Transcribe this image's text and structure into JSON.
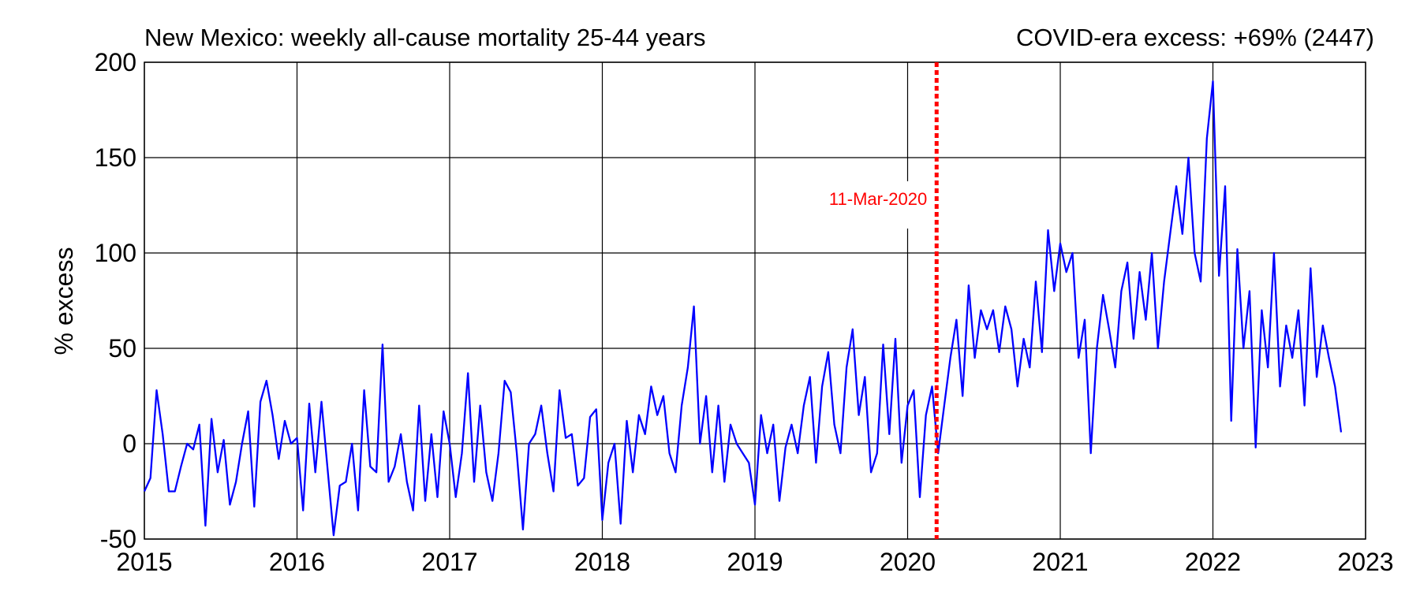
{
  "chart_data": {
    "type": "line",
    "title": "New Mexico: weekly all-cause mortality 25-44 years",
    "subtitle": "COVID-era excess: +69% (2447)",
    "y_label": "% excess",
    "annotation": {
      "x": 2020.19,
      "label": "11-Mar-2020",
      "color": "#ff0000"
    },
    "xlim": [
      2015,
      2023
    ],
    "xticks": [
      2015,
      2016,
      2017,
      2018,
      2019,
      2020,
      2021,
      2022,
      2023
    ],
    "ylim": [
      -50,
      200
    ],
    "yticks": [
      -50,
      0,
      50,
      100,
      150,
      200
    ],
    "grid": true,
    "series": [
      {
        "color": "#0000ff",
        "x": [
          2015,
          2015.04,
          2015.08,
          2015.12,
          2015.16,
          2015.2,
          2015.24,
          2015.28,
          2015.32,
          2015.36,
          2015.4,
          2015.44,
          2015.48,
          2015.52,
          2015.56,
          2015.6,
          2015.64,
          2015.68,
          2015.72,
          2015.76,
          2015.8,
          2015.84,
          2015.88,
          2015.92,
          2015.96,
          2016,
          2016.04,
          2016.08,
          2016.12,
          2016.16,
          2016.2,
          2016.24,
          2016.28,
          2016.32,
          2016.36,
          2016.4,
          2016.44,
          2016.48,
          2016.52,
          2016.56,
          2016.6,
          2016.64,
          2016.68,
          2016.72,
          2016.76,
          2016.8,
          2016.84,
          2016.88,
          2016.92,
          2016.96,
          2017,
          2017.04,
          2017.08,
          2017.12,
          2017.16,
          2017.2,
          2017.24,
          2017.28,
          2017.32,
          2017.36,
          2017.4,
          2017.44,
          2017.48,
          2017.52,
          2017.56,
          2017.6,
          2017.64,
          2017.68,
          2017.72,
          2017.76,
          2017.8,
          2017.84,
          2017.88,
          2017.92,
          2017.96,
          2018,
          2018.04,
          2018.08,
          2018.12,
          2018.16,
          2018.2,
          2018.24,
          2018.28,
          2018.32,
          2018.36,
          2018.4,
          2018.44,
          2018.48,
          2018.52,
          2018.56,
          2018.6,
          2018.64,
          2018.68,
          2018.72,
          2018.76,
          2018.8,
          2018.84,
          2018.88,
          2018.92,
          2018.96,
          2019,
          2019.04,
          2019.08,
          2019.12,
          2019.16,
          2019.2,
          2019.24,
          2019.28,
          2019.32,
          2019.36,
          2019.4,
          2019.44,
          2019.48,
          2019.52,
          2019.56,
          2019.6,
          2019.64,
          2019.68,
          2019.72,
          2019.76,
          2019.8,
          2019.84,
          2019.88,
          2019.92,
          2019.96,
          2020,
          2020.04,
          2020.08,
          2020.12,
          2020.16,
          2020.2,
          2020.24,
          2020.28,
          2020.32,
          2020.36,
          2020.4,
          2020.44,
          2020.48,
          2020.52,
          2020.56,
          2020.6,
          2020.64,
          2020.68,
          2020.72,
          2020.76,
          2020.8,
          2020.84,
          2020.88,
          2020.92,
          2020.96,
          2021,
          2021.04,
          2021.08,
          2021.12,
          2021.16,
          2021.2,
          2021.24,
          2021.28,
          2021.32,
          2021.36,
          2021.4,
          2021.44,
          2021.48,
          2021.52,
          2021.56,
          2021.6,
          2021.64,
          2021.68,
          2021.72,
          2021.76,
          2021.8,
          2021.84,
          2021.88,
          2021.92,
          2021.96,
          2022,
          2022.04,
          2022.08,
          2022.12,
          2022.16,
          2022.2,
          2022.24,
          2022.28,
          2022.32,
          2022.36,
          2022.4,
          2022.44,
          2022.48,
          2022.52,
          2022.56,
          2022.6,
          2022.64,
          2022.68,
          2022.72,
          2022.76,
          2022.8,
          2022.84
        ],
        "values": [
          -25,
          -18,
          28,
          5,
          -25,
          -25,
          -12,
          0,
          -3,
          10,
          -43,
          13,
          -15,
          2,
          -32,
          -20,
          0,
          17,
          -33,
          22,
          33,
          15,
          -8,
          12,
          0,
          3,
          -35,
          21,
          -15,
          22,
          -13,
          -48,
          -22,
          -20,
          0,
          -35,
          28,
          -12,
          -15,
          52,
          -20,
          -12,
          5,
          -20,
          -35,
          20,
          -30,
          5,
          -28,
          17,
          0,
          -28,
          -5,
          37,
          -20,
          20,
          -15,
          -30,
          -5,
          33,
          27,
          -5,
          -45,
          0,
          5,
          20,
          -5,
          -25,
          28,
          3,
          5,
          -22,
          -18,
          14,
          18,
          -40,
          -10,
          0,
          -42,
          12,
          -15,
          15,
          5,
          30,
          15,
          25,
          -5,
          -15,
          20,
          40,
          72,
          0,
          25,
          -15,
          20,
          -20,
          10,
          0,
          -5,
          -10,
          -32,
          15,
          -5,
          10,
          -30,
          -2,
          10,
          -5,
          20,
          35,
          -10,
          30,
          48,
          10,
          -5,
          40,
          60,
          15,
          35,
          -15,
          -5,
          52,
          5,
          55,
          -10,
          20,
          28,
          -28,
          15,
          30,
          -5,
          20,
          45,
          65,
          25,
          83,
          45,
          70,
          60,
          70,
          48,
          72,
          60,
          30,
          55,
          40,
          85,
          48,
          112,
          80,
          105,
          90,
          100,
          45,
          65,
          -5,
          50,
          78,
          60,
          40,
          80,
          95,
          55,
          90,
          65,
          100,
          50,
          85,
          110,
          135,
          110,
          150,
          100,
          85,
          160,
          190,
          88,
          135,
          12,
          102,
          50,
          80,
          -2,
          70,
          40,
          100,
          30,
          62,
          45,
          70,
          20,
          92,
          35,
          62,
          45,
          30,
          6
        ]
      }
    ]
  }
}
